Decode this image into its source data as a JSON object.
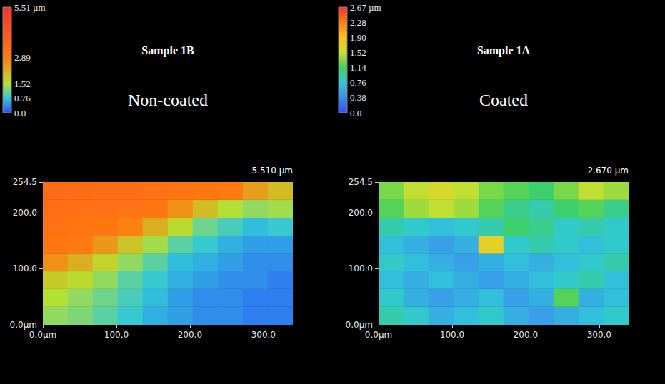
{
  "chart_data": [
    {
      "type": "heatmap",
      "title": "Sample 1B",
      "subtitle": "Non-coated",
      "x": [
        17,
        51,
        85,
        119,
        153,
        187,
        221,
        255,
        289,
        323
      ],
      "y": [
        16,
        48,
        80,
        111,
        143,
        175,
        207,
        239
      ],
      "values": [
        [
          1.3,
          1.2,
          1.0,
          0.8,
          0.6,
          0.5,
          0.4,
          0.4,
          0.3,
          0.3
        ],
        [
          1.5,
          1.3,
          1.1,
          0.9,
          0.7,
          0.5,
          0.4,
          0.4,
          0.3,
          0.3
        ],
        [
          1.8,
          1.6,
          1.3,
          1.0,
          0.8,
          0.6,
          0.5,
          0.4,
          0.4,
          0.3
        ],
        [
          2.6,
          2.2,
          1.7,
          1.3,
          1.0,
          0.7,
          0.6,
          0.5,
          0.4,
          0.4
        ],
        [
          3.0,
          2.9,
          2.5,
          1.9,
          1.4,
          1.0,
          0.8,
          0.6,
          0.5,
          0.5
        ],
        [
          3.2,
          3.1,
          3.0,
          2.8,
          2.2,
          1.6,
          1.1,
          0.9,
          0.7,
          0.8
        ],
        [
          3.3,
          3.2,
          3.2,
          3.1,
          3.0,
          2.6,
          2.0,
          1.5,
          1.3,
          1.4
        ],
        [
          3.4,
          3.4,
          3.3,
          3.3,
          3.2,
          3.1,
          3.0,
          2.9,
          2.4,
          2.0
        ]
      ],
      "xlim": [
        0,
        340
      ],
      "ylim": [
        0,
        254.5
      ],
      "xticks": [
        {
          "value": 0,
          "label": "0.0μm"
        },
        {
          "value": 100,
          "label": "100.0"
        },
        {
          "value": 200,
          "label": "200.0"
        },
        {
          "value": 300,
          "label": "300.0"
        }
      ],
      "yticks": [
        {
          "value": 0,
          "label": "0.0μm"
        },
        {
          "value": 100,
          "label": "100.0"
        },
        {
          "value": 200,
          "label": "200.0"
        },
        254.5
      ],
      "z_max": {
        "value": 5.51,
        "label": "5.510 μm"
      },
      "colorbar": {
        "range": [
          0,
          5.51
        ],
        "ticks": [
          {
            "value": 0,
            "label": "0.0"
          },
          0.76,
          1.52,
          2.89,
          {
            "value": 5.51,
            "label": "5.51 µm"
          }
        ],
        "colors": [
          "#2f4fff",
          "#30c8d8",
          "#b8e030",
          "#ff7a10",
          "#ff3030"
        ]
      }
    },
    {
      "type": "heatmap",
      "title": "Sample 1A",
      "subtitle": "Coated",
      "x": [
        17,
        51,
        85,
        119,
        153,
        187,
        221,
        255,
        289,
        323
      ],
      "y": [
        16,
        48,
        80,
        111,
        143,
        175,
        207,
        239
      ],
      "values": [
        [
          0.9,
          0.8,
          0.6,
          0.7,
          0.8,
          0.6,
          0.5,
          0.6,
          0.7,
          0.8
        ],
        [
          0.8,
          0.6,
          0.5,
          0.6,
          0.7,
          0.5,
          0.6,
          1.2,
          0.6,
          0.7
        ],
        [
          0.7,
          0.6,
          0.7,
          0.6,
          0.5,
          0.6,
          0.7,
          0.8,
          0.9,
          0.7
        ],
        [
          0.8,
          0.7,
          0.6,
          0.5,
          0.6,
          0.7,
          0.6,
          0.7,
          0.8,
          0.9
        ],
        [
          0.7,
          0.6,
          0.5,
          0.6,
          1.7,
          0.8,
          0.9,
          0.8,
          0.7,
          0.8
        ],
        [
          0.9,
          0.8,
          0.7,
          0.8,
          0.9,
          1.1,
          1.0,
          0.8,
          0.9,
          0.8
        ],
        [
          1.2,
          1.4,
          1.5,
          1.4,
          1.2,
          1.0,
          0.9,
          1.1,
          1.2,
          1.0
        ],
        [
          1.3,
          1.5,
          1.6,
          1.5,
          1.3,
          1.2,
          1.1,
          1.3,
          1.5,
          1.4
        ]
      ],
      "xlim": [
        0,
        340
      ],
      "ylim": [
        0,
        254.5
      ],
      "xticks": [
        {
          "value": 0,
          "label": "0.0μm"
        },
        {
          "value": 100,
          "label": "100.0"
        },
        {
          "value": 200,
          "label": "200.0"
        },
        {
          "value": 300,
          "label": "300.0"
        }
      ],
      "yticks": [
        {
          "value": 0,
          "label": "0.0μm"
        },
        {
          "value": 100,
          "label": "100.0"
        },
        {
          "value": 200,
          "label": "200.0"
        },
        254.5
      ],
      "z_max": {
        "value": 2.67,
        "label": "2.670 μm"
      },
      "colorbar": {
        "range": [
          0,
          2.67
        ],
        "ticks": [
          {
            "value": 0,
            "label": "0.0"
          },
          0.38,
          0.76,
          1.14,
          1.52,
          {
            "value": 1.9,
            "label": "1.90"
          },
          2.28,
          {
            "value": 2.67,
            "label": "2.67 µm"
          }
        ],
        "colors": [
          "#2f4fff",
          "#3c8cf0",
          "#30c8d8",
          "#40d060",
          "#c8e030",
          "#ffc020",
          "#ff8010",
          "#ff3030"
        ]
      }
    }
  ]
}
